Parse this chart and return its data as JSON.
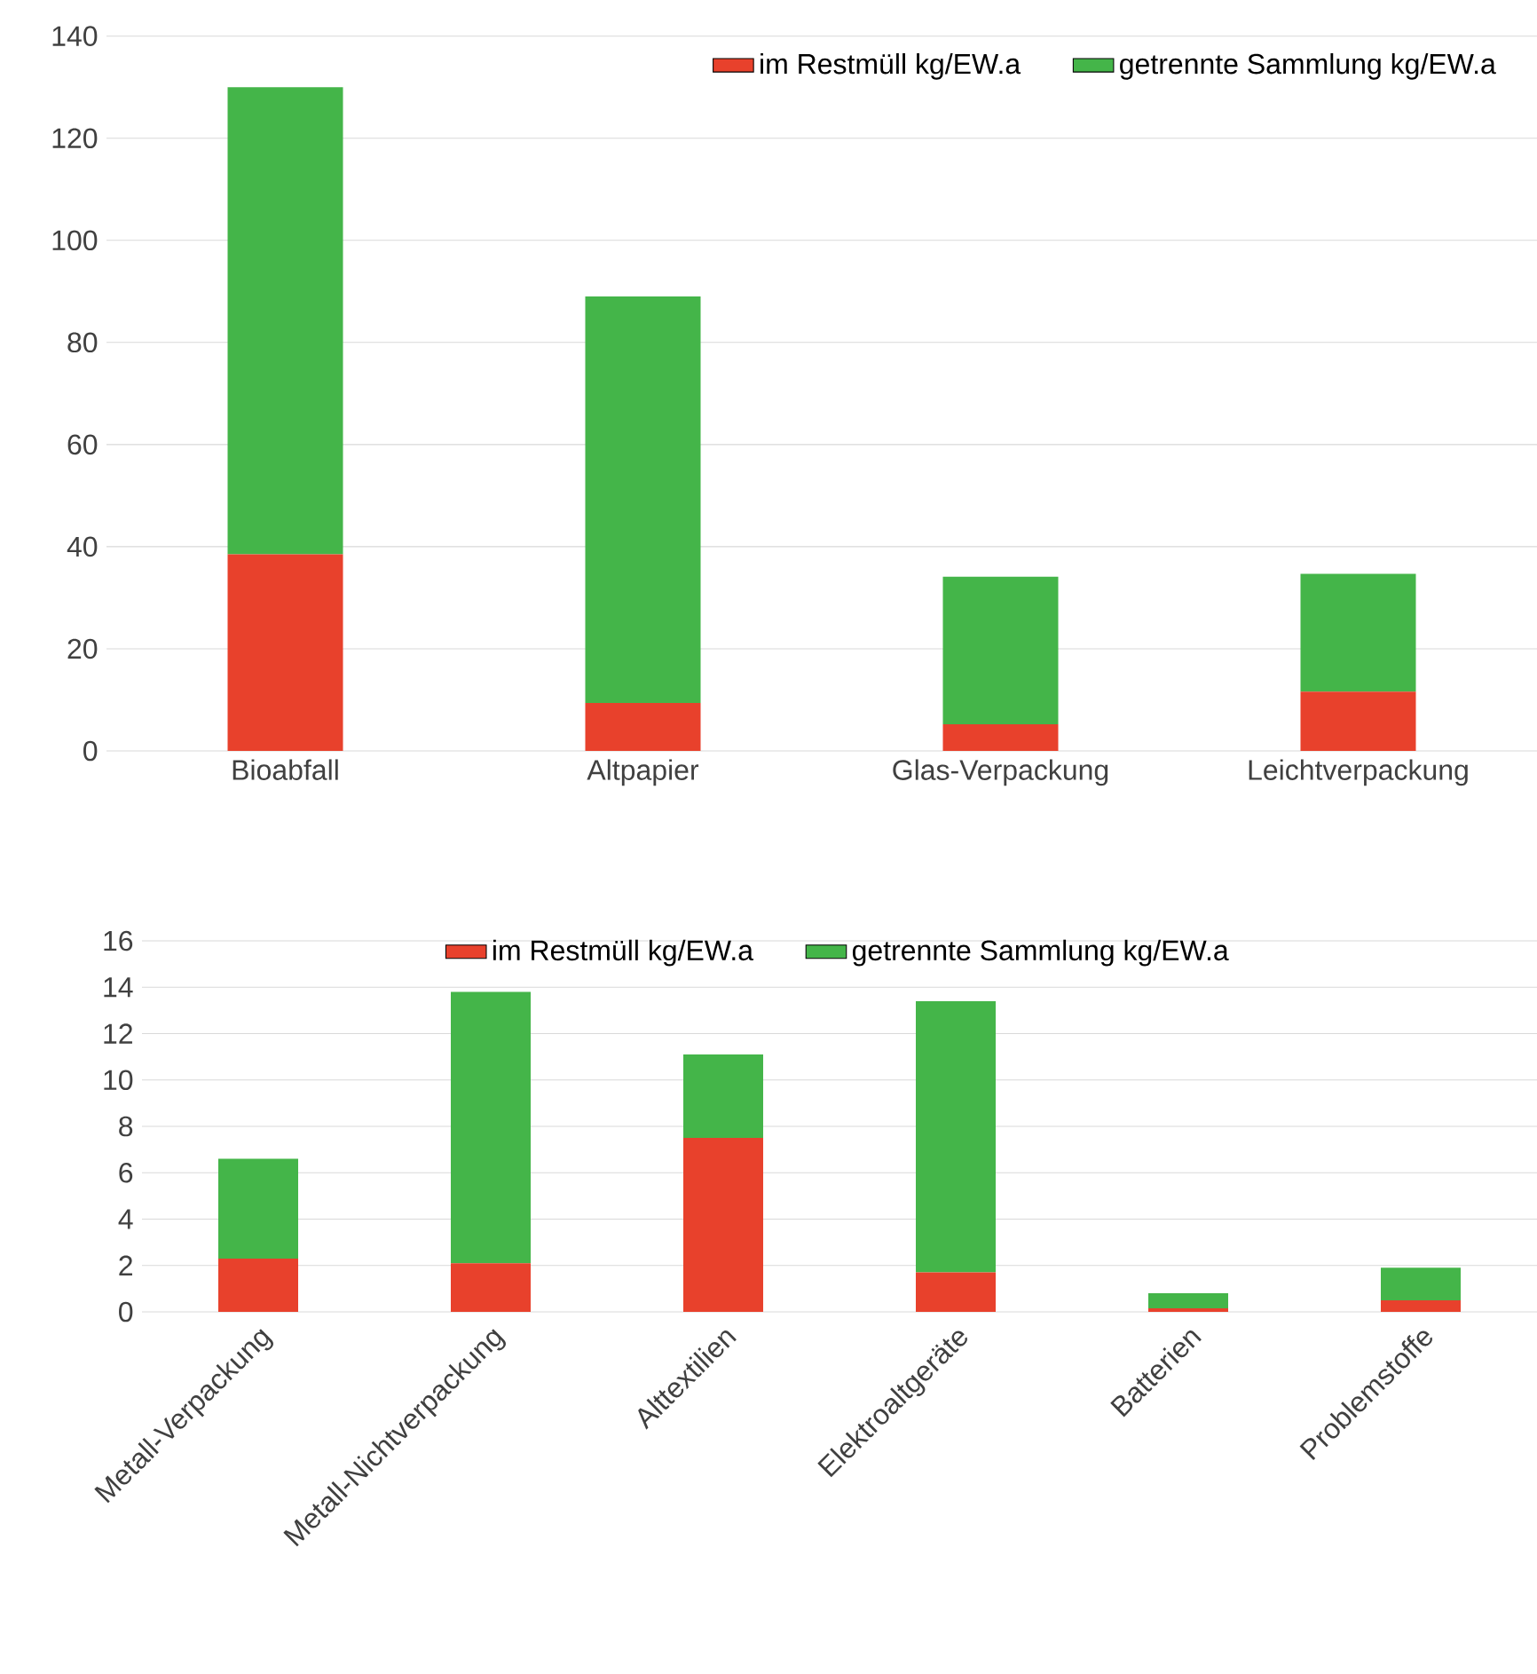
{
  "chart_data": [
    {
      "type": "bar",
      "stacked": true,
      "categories": [
        "Bioabfall",
        "Altpapier",
        "Glas-Verpackung",
        "Leichtverpackung"
      ],
      "series": [
        {
          "name": "im Restmüll kg/EW.a",
          "color": "#e8412c",
          "values": [
            38.5,
            9.4,
            5.2,
            11.6
          ]
        },
        {
          "name": "getrennte Sammlung kg/EW.a",
          "color": "#44b549",
          "values": [
            91.5,
            79.6,
            28.9,
            23.1
          ]
        }
      ],
      "ylim": [
        0,
        140
      ],
      "yticks": [
        0,
        20,
        40,
        60,
        80,
        100,
        120,
        140
      ],
      "grid": "y",
      "legend": "top right"
    },
    {
      "type": "bar",
      "stacked": true,
      "categories": [
        "Metall-Verpackung",
        "Metall-Nichtverpackung",
        "Alttextilien",
        "Elektroaltgeräte",
        "Batterien",
        "Problemstoffe"
      ],
      "series": [
        {
          "name": "im Restmüll kg/EW.a",
          "color": "#e8412c",
          "values": [
            2.3,
            2.1,
            7.5,
            1.7,
            0.15,
            0.5
          ]
        },
        {
          "name": "getrennte Sammlung kg/EW.a",
          "color": "#44b549",
          "values": [
            4.3,
            11.7,
            3.6,
            11.7,
            0.65,
            1.4
          ]
        }
      ],
      "ylim": [
        0,
        16
      ],
      "yticks": [
        0,
        2,
        4,
        6,
        8,
        10,
        12,
        14,
        16
      ],
      "grid": "y",
      "legend": "top"
    }
  ]
}
